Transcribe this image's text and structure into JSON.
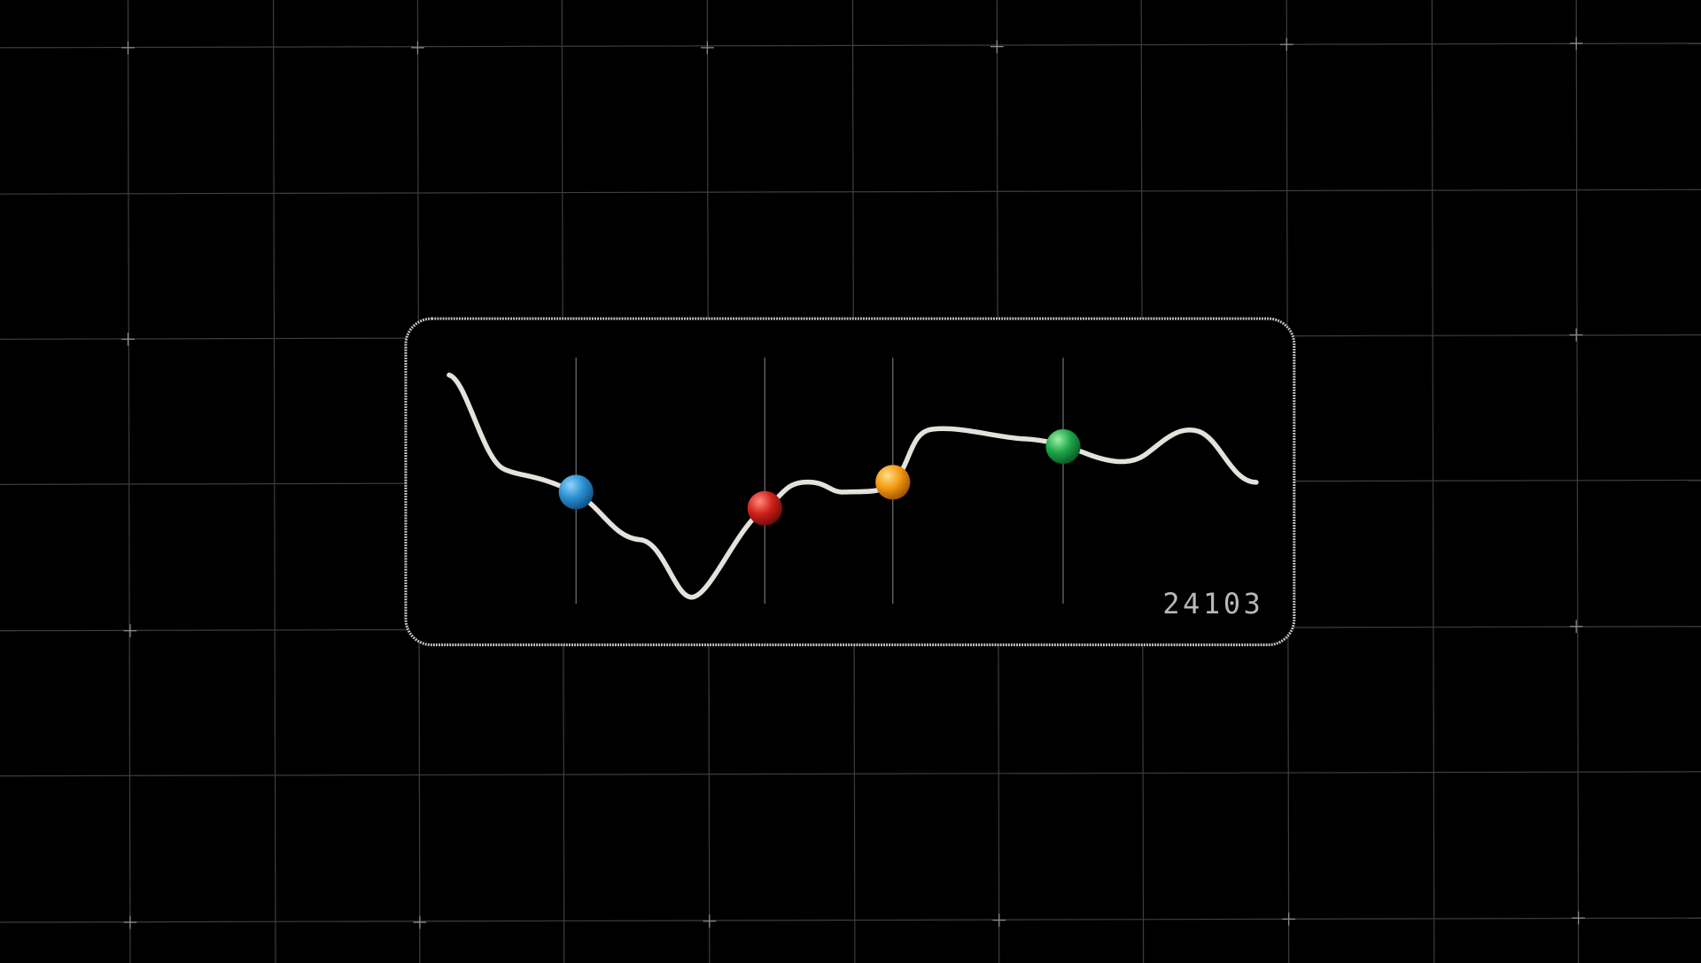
{
  "readout": "24103"
}
